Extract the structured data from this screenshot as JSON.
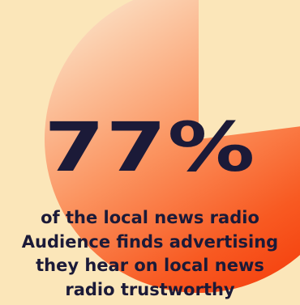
{
  "stat": {
    "value": "77%",
    "fraction": 0.77
  },
  "caption": {
    "lines": [
      "of the local news radio",
      "Audience finds advertising",
      "they hear on local news",
      "radio trustworthy"
    ]
  },
  "colors": {
    "background": "#fbe6b9",
    "text": "#1b1a38",
    "gradient_light": "#fbd6b6",
    "gradient_mid": "#fb8a4c",
    "gradient_dark": "#f63a0c"
  }
}
